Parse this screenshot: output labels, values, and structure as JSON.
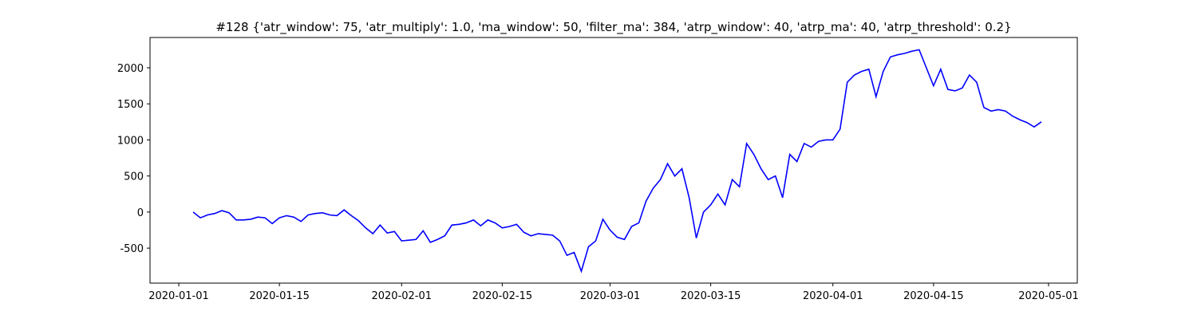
{
  "chart_data": {
    "type": "line",
    "title": "#128 {'atr_window': 75, 'atr_multiply': 1.0, 'ma_window': 50, 'filter_ma': 384, 'atrp_window': 40, 'atrp_ma': 40, 'atrp_threshold': 0.2}",
    "x": [
      "2020-01-03",
      "2020-01-04",
      "2020-01-05",
      "2020-01-06",
      "2020-01-07",
      "2020-01-08",
      "2020-01-09",
      "2020-01-10",
      "2020-01-11",
      "2020-01-12",
      "2020-01-13",
      "2020-01-14",
      "2020-01-15",
      "2020-01-16",
      "2020-01-17",
      "2020-01-18",
      "2020-01-19",
      "2020-01-20",
      "2020-01-21",
      "2020-01-22",
      "2020-01-23",
      "2020-01-24",
      "2020-01-25",
      "2020-01-26",
      "2020-01-27",
      "2020-01-28",
      "2020-01-29",
      "2020-01-30",
      "2020-01-31",
      "2020-02-01",
      "2020-02-02",
      "2020-02-03",
      "2020-02-04",
      "2020-02-05",
      "2020-02-06",
      "2020-02-07",
      "2020-02-08",
      "2020-02-09",
      "2020-02-10",
      "2020-02-11",
      "2020-02-12",
      "2020-02-13",
      "2020-02-14",
      "2020-02-15",
      "2020-02-16",
      "2020-02-17",
      "2020-02-18",
      "2020-02-19",
      "2020-02-20",
      "2020-02-21",
      "2020-02-22",
      "2020-02-23",
      "2020-02-24",
      "2020-02-25",
      "2020-02-26",
      "2020-02-27",
      "2020-02-28",
      "2020-02-29",
      "2020-03-01",
      "2020-03-02",
      "2020-03-03",
      "2020-03-04",
      "2020-03-05",
      "2020-03-06",
      "2020-03-07",
      "2020-03-08",
      "2020-03-09",
      "2020-03-10",
      "2020-03-11",
      "2020-03-12",
      "2020-03-13",
      "2020-03-14",
      "2020-03-15",
      "2020-03-16",
      "2020-03-17",
      "2020-03-18",
      "2020-03-19",
      "2020-03-20",
      "2020-03-21",
      "2020-03-22",
      "2020-03-23",
      "2020-03-24",
      "2020-03-25",
      "2020-03-26",
      "2020-03-27",
      "2020-03-28",
      "2020-03-29",
      "2020-03-30",
      "2020-03-31",
      "2020-04-01",
      "2020-04-02",
      "2020-04-03",
      "2020-04-04",
      "2020-04-05",
      "2020-04-06",
      "2020-04-07",
      "2020-04-08",
      "2020-04-09",
      "2020-04-10",
      "2020-04-11",
      "2020-04-12",
      "2020-04-13",
      "2020-04-14",
      "2020-04-15",
      "2020-04-16",
      "2020-04-17",
      "2020-04-18",
      "2020-04-19",
      "2020-04-20",
      "2020-04-21",
      "2020-04-22",
      "2020-04-23",
      "2020-04-24",
      "2020-04-25",
      "2020-04-26",
      "2020-04-27",
      "2020-04-28",
      "2020-04-29",
      "2020-04-30"
    ],
    "series": [
      {
        "color": "#0000ff",
        "values": [
          0,
          -80,
          -40,
          -20,
          20,
          -10,
          -110,
          -110,
          -100,
          -70,
          -80,
          -160,
          -80,
          -50,
          -70,
          -130,
          -40,
          -20,
          -10,
          -40,
          -50,
          30,
          -50,
          -120,
          -220,
          -300,
          -180,
          -290,
          -270,
          -400,
          -390,
          -380,
          -260,
          -420,
          -380,
          -330,
          -180,
          -170,
          -150,
          -110,
          -190,
          -110,
          -150,
          -220,
          -200,
          -170,
          -280,
          -330,
          -300,
          -310,
          -320,
          -400,
          -600,
          -560,
          -820,
          -480,
          -400,
          -100,
          -250,
          -350,
          -380,
          -200,
          -150,
          150,
          330,
          450,
          670,
          500,
          600,
          200,
          -360,
          0,
          100,
          250,
          100,
          450,
          350,
          950,
          800,
          600,
          450,
          500,
          200,
          800,
          700,
          950,
          900,
          980,
          1000,
          1000,
          1150,
          1800,
          1900,
          1950,
          1980,
          1600,
          1950,
          2150,
          2180,
          2200,
          2230,
          2250,
          2000,
          1750,
          1980,
          1700,
          1680,
          1720,
          1900,
          1800,
          1450,
          1400,
          1420,
          1400,
          1330,
          1280,
          1240,
          1180,
          1250
        ]
      }
    ],
    "xlim": [
      "2019-12-28",
      "2020-05-05"
    ],
    "xticks": [
      "2020-01-01",
      "2020-01-15",
      "2020-02-01",
      "2020-02-15",
      "2020-03-01",
      "2020-03-15",
      "2020-04-01",
      "2020-04-15",
      "2020-05-01"
    ],
    "ylim": [
      -985,
      2420
    ],
    "yticks": [
      -500,
      0,
      500,
      1000,
      1500,
      2000
    ]
  }
}
